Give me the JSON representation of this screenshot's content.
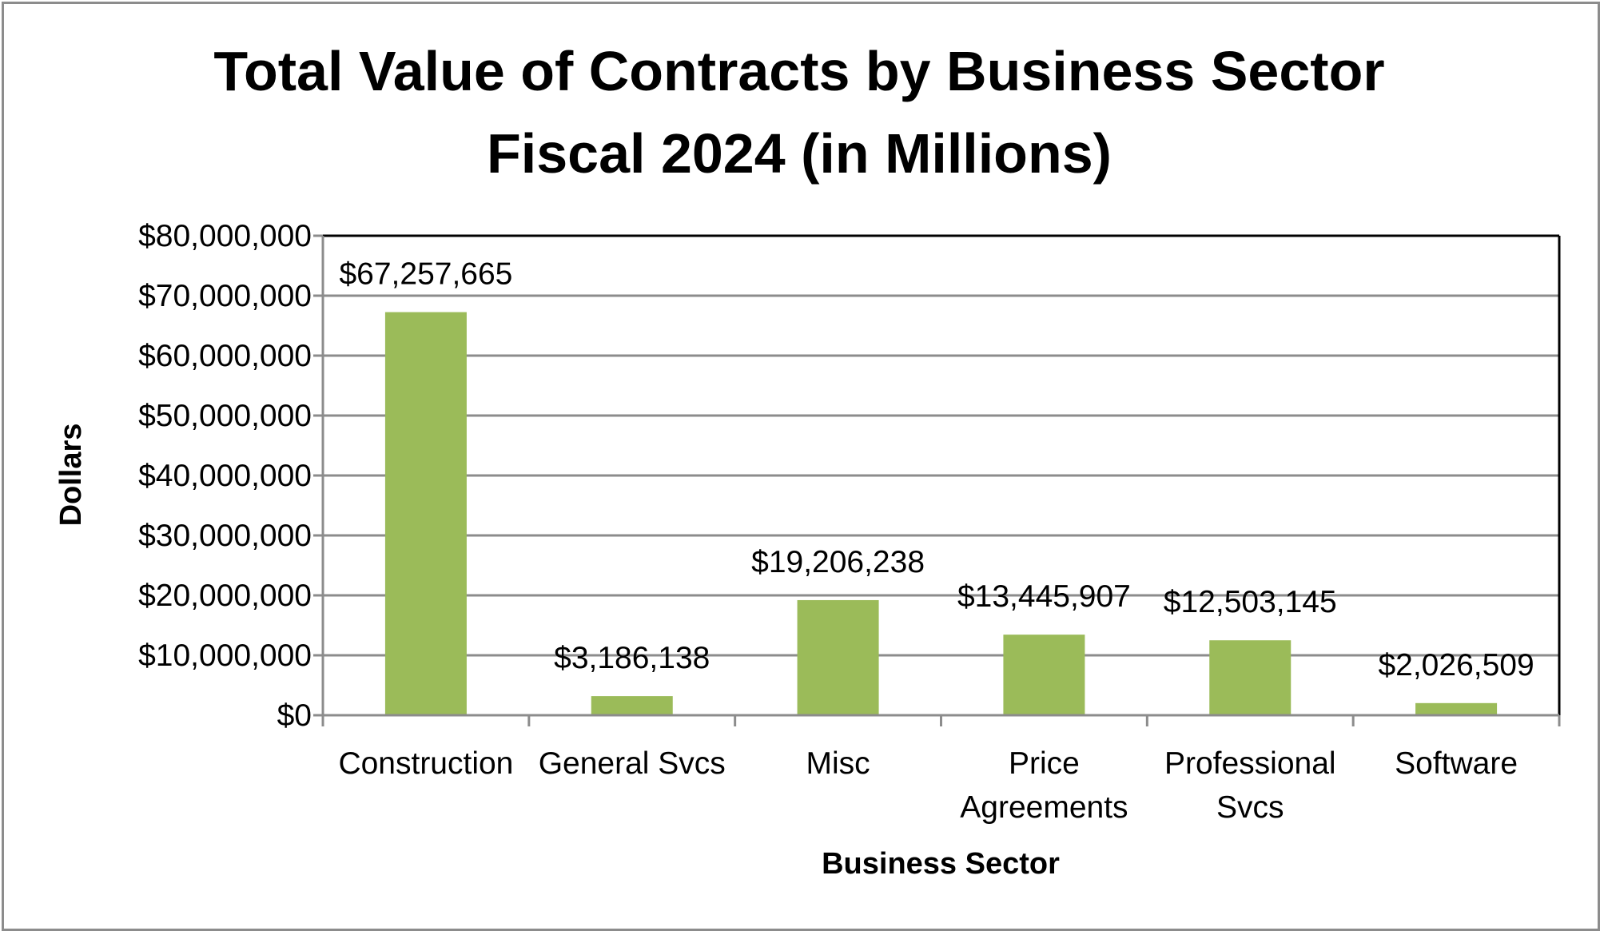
{
  "chart_data": {
    "type": "bar",
    "title": "Total Value of Contracts by Business Sector",
    "subtitle": "Fiscal 2024 (in Millions)",
    "xlabel": "Business Sector",
    "ylabel": "Dollars",
    "categories": [
      [
        "Construction"
      ],
      [
        "General Svcs"
      ],
      [
        "Misc"
      ],
      [
        "Price",
        "Agreements"
      ],
      [
        "Professional",
        "Svcs"
      ],
      [
        "Software"
      ]
    ],
    "values": [
      67257665,
      3186138,
      19206238,
      13445907,
      12503145,
      2026509
    ],
    "data_labels": [
      "$67,257,665",
      "$3,186,138",
      "$19,206,238",
      "$13,445,907",
      "$12,503,145",
      "$2,026,509"
    ],
    "ylim": [
      0,
      80000000
    ],
    "yticks": [
      0,
      10000000,
      20000000,
      30000000,
      40000000,
      50000000,
      60000000,
      70000000,
      80000000
    ],
    "ytick_labels": [
      "$0",
      "$10,000,000",
      "$20,000,000",
      "$30,000,000",
      "$40,000,000",
      "$50,000,000",
      "$60,000,000",
      "$70,000,000",
      "$80,000,000"
    ],
    "grid": true,
    "legend": "none",
    "bar_color": "#9bbb59",
    "grid_color": "#8c8c8c"
  }
}
